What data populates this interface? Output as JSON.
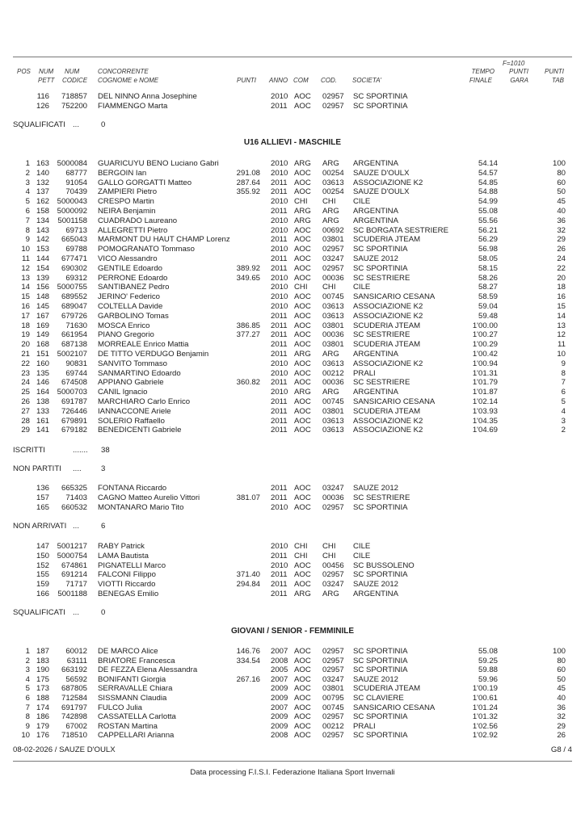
{
  "header": {
    "f_label": "F=1010",
    "cols_top": {
      "pos": "POS",
      "num1": "NUM",
      "num2": "NUM",
      "concorrente": "CONCORRENTE",
      "tempo": "TEMPO",
      "punti_gara": "PUNTI",
      "punti_tab": "PUNTI"
    },
    "cols_bottom": {
      "pett": "PETT",
      "codice": "CODICE",
      "nome": "COGNOME e NOME",
      "punti": "PUNTI",
      "anno": "ANNO",
      "com": "COM",
      "cod": "COD.",
      "societa": "SOCIETA'",
      "finale": "FINALE",
      "gara": "GARA",
      "tab": "TAB"
    }
  },
  "prev_rows": [
    [
      "",
      "116",
      "718857",
      "DEL NINNO Anna Josephine",
      "",
      "2010",
      "AOC",
      "02957",
      "SC SPORTINIA",
      "",
      ""
    ],
    [
      "",
      "126",
      "752200",
      "FIAMMENGO Marta",
      "",
      "2011",
      "AOC",
      "02957",
      "SC SPORTINIA",
      "",
      ""
    ]
  ],
  "prev_squalificati": {
    "label": "SQUALIFICATI",
    "dots": "...",
    "count": "0"
  },
  "u16": {
    "title": "U16 ALLIEVI - MASCHILE",
    "rows": [
      [
        "1",
        "163",
        "5000084",
        "GUARICUYU BENO Luciano Gabri",
        "",
        "2010",
        "ARG",
        "ARG",
        "ARGENTINA",
        "54.14",
        "100"
      ],
      [
        "2",
        "140",
        "68777",
        "BERGOIN Ian",
        "291.08",
        "2010",
        "AOC",
        "00254",
        "SAUZE D'OULX",
        "54.57",
        "80"
      ],
      [
        "3",
        "132",
        "91054",
        "GALLO GORGATTI Matteo",
        "287.64",
        "2011",
        "AOC",
        "03613",
        "ASSOCIAZIONE K2",
        "54.85",
        "60"
      ],
      [
        "4",
        "137",
        "70439",
        "ZAMPIERI Pietro",
        "355.92",
        "2011",
        "AOC",
        "00254",
        "SAUZE D'OULX",
        "54.88",
        "50"
      ],
      [
        "5",
        "162",
        "5000043",
        "CRESPO Martin",
        "",
        "2010",
        "CHI",
        "CHI",
        "CILE",
        "54.99",
        "45"
      ],
      [
        "6",
        "158",
        "5000092",
        "NEIRA Benjamin",
        "",
        "2011",
        "ARG",
        "ARG",
        "ARGENTINA",
        "55.08",
        "40"
      ],
      [
        "7",
        "134",
        "5001158",
        "CUADRADO Laureano",
        "",
        "2010",
        "ARG",
        "ARG",
        "ARGENTINA",
        "55.56",
        "36"
      ],
      [
        "8",
        "143",
        "69713",
        "ALLEGRETTI Pietro",
        "",
        "2010",
        "AOC",
        "00692",
        "SC BORGATA SESTRIERE",
        "56.21",
        "32"
      ],
      [
        "9",
        "142",
        "665043",
        "MARMONT DU HAUT CHAMP Lorenz",
        "",
        "2011",
        "AOC",
        "03801",
        "SCUDERIA JTEAM",
        "56.29",
        "29"
      ],
      [
        "10",
        "153",
        "69788",
        "POMOGRANATO Tommaso",
        "",
        "2010",
        "AOC",
        "02957",
        "SC SPORTINIA",
        "56.98",
        "26"
      ],
      [
        "11",
        "144",
        "677471",
        "VICO Alessandro",
        "",
        "2011",
        "AOC",
        "03247",
        "SAUZE 2012",
        "58.05",
        "24"
      ],
      [
        "12",
        "154",
        "690302",
        "GENTILE Edoardo",
        "389.92",
        "2011",
        "AOC",
        "02957",
        "SC SPORTINIA",
        "58.15",
        "22"
      ],
      [
        "13",
        "139",
        "69312",
        "PERRONE Edoardo",
        "349.65",
        "2010",
        "AOC",
        "00036",
        "SC SESTRIERE",
        "58.26",
        "20"
      ],
      [
        "14",
        "156",
        "5000755",
        "SANTIBANEZ Pedro",
        "",
        "2010",
        "CHI",
        "CHI",
        "CILE",
        "58.27",
        "18"
      ],
      [
        "15",
        "148",
        "689552",
        "JERINO' Federico",
        "",
        "2010",
        "AOC",
        "00745",
        "SANSICARIO CESANA",
        "58.59",
        "16"
      ],
      [
        "16",
        "145",
        "689047",
        "COLTELLA Davide",
        "",
        "2010",
        "AOC",
        "03613",
        "ASSOCIAZIONE K2",
        "59.04",
        "15"
      ],
      [
        "17",
        "167",
        "679726",
        "GARBOLINO Tomas",
        "",
        "2011",
        "AOC",
        "03613",
        "ASSOCIAZIONE K2",
        "59.48",
        "14"
      ],
      [
        "18",
        "169",
        "71630",
        "MOSCA Enrico",
        "386.85",
        "2011",
        "AOC",
        "03801",
        "SCUDERIA JTEAM",
        "1'00.00",
        "13"
      ],
      [
        "19",
        "149",
        "661954",
        "PIANO Gregorio",
        "377.27",
        "2011",
        "AOC",
        "00036",
        "SC SESTRIERE",
        "1'00.27",
        "12"
      ],
      [
        "20",
        "168",
        "687138",
        "MORREALE Enrico Mattia",
        "",
        "2011",
        "AOC",
        "03801",
        "SCUDERIA JTEAM",
        "1'00.29",
        "11"
      ],
      [
        "21",
        "151",
        "5002107",
        "DE TITTO VERDUGO Benjamin",
        "",
        "2011",
        "ARG",
        "ARG",
        "ARGENTINA",
        "1'00.42",
        "10"
      ],
      [
        "22",
        "160",
        "90831",
        "SANVITO Tommaso",
        "",
        "2010",
        "AOC",
        "03613",
        "ASSOCIAZIONE K2",
        "1'00.94",
        "9"
      ],
      [
        "23",
        "135",
        "69744",
        "SANMARTINO Edoardo",
        "",
        "2010",
        "AOC",
        "00212",
        "PRALI",
        "1'01.31",
        "8"
      ],
      [
        "24",
        "146",
        "674508",
        "APPIANO Gabriele",
        "360.82",
        "2011",
        "AOC",
        "00036",
        "SC SESTRIERE",
        "1'01.79",
        "7"
      ],
      [
        "25",
        "164",
        "5000703",
        "CANIL Ignacio",
        "",
        "2010",
        "ARG",
        "ARG",
        "ARGENTINA",
        "1'01.87",
        "6"
      ],
      [
        "26",
        "138",
        "691787",
        "MARCHIARO Carlo Enrico",
        "",
        "2011",
        "AOC",
        "00745",
        "SANSICARIO CESANA",
        "1'02.14",
        "5"
      ],
      [
        "27",
        "133",
        "726446",
        "IANNACCONE Ariele",
        "",
        "2011",
        "AOC",
        "03801",
        "SCUDERIA JTEAM",
        "1'03.93",
        "4"
      ],
      [
        "28",
        "161",
        "679891",
        "SOLERIO Raffaello",
        "",
        "2011",
        "AOC",
        "03613",
        "ASSOCIAZIONE K2",
        "1'04.35",
        "3"
      ],
      [
        "29",
        "141",
        "679182",
        "BENEDICENTI Gabriele",
        "",
        "2011",
        "AOC",
        "03613",
        "ASSOCIAZIONE K2",
        "1'04.69",
        "2"
      ]
    ],
    "iscritti": {
      "label": "ISCRITTI",
      "dots": ".......",
      "count": "38"
    },
    "non_partiti": {
      "label": "NON PARTITI",
      "dots": "....",
      "count": "3"
    },
    "non_partiti_rows": [
      [
        "",
        "136",
        "665325",
        "FONTANA Riccardo",
        "",
        "2011",
        "AOC",
        "03247",
        "SAUZE 2012",
        "",
        ""
      ],
      [
        "",
        "157",
        "71403",
        "CAGNO Matteo Aurelio    Vittori",
        "381.07",
        "2011",
        "AOC",
        "00036",
        "SC SESTRIERE",
        "",
        ""
      ],
      [
        "",
        "165",
        "660532",
        "MONTANARO Mario Tito",
        "",
        "2010",
        "AOC",
        "02957",
        "SC SPORTINIA",
        "",
        ""
      ]
    ],
    "non_arrivati": {
      "label": "NON ARRIVATI",
      "dots": "...",
      "count": "6"
    },
    "non_arrivati_rows": [
      [
        "",
        "147",
        "5001217",
        "RABY Patrick",
        "",
        "2010",
        "CHI",
        "CHI",
        "CILE",
        "",
        ""
      ],
      [
        "",
        "150",
        "5000754",
        "LAMA Bautista",
        "",
        "2011",
        "CHI",
        "CHI",
        "CILE",
        "",
        ""
      ],
      [
        "",
        "152",
        "674861",
        "PIGNATELLI Marco",
        "",
        "2010",
        "AOC",
        "00456",
        "SC BUSSOLENO",
        "",
        ""
      ],
      [
        "",
        "155",
        "691214",
        "FALCONI Filippo",
        "371.40",
        "2011",
        "AOC",
        "02957",
        "SC SPORTINIA",
        "",
        ""
      ],
      [
        "",
        "159",
        "71717",
        "VIOTTI Riccardo",
        "294.84",
        "2011",
        "AOC",
        "03247",
        "SAUZE 2012",
        "",
        ""
      ],
      [
        "",
        "166",
        "5001188",
        "BENEGAS Emilio",
        "",
        "2011",
        "ARG",
        "ARG",
        "ARGENTINA",
        "",
        ""
      ]
    ],
    "squalificati": {
      "label": "SQUALIFICATI",
      "dots": "...",
      "count": "0"
    }
  },
  "giovani": {
    "title": "GIOVANI / SENIOR - FEMMINILE",
    "rows": [
      [
        "1",
        "187",
        "60012",
        "DE MARCO Alice",
        "146.76",
        "2007",
        "AOC",
        "02957",
        "SC SPORTINIA",
        "55.08",
        "100"
      ],
      [
        "2",
        "183",
        "63111",
        "BRIATORE Francesca",
        "334.54",
        "2008",
        "AOC",
        "02957",
        "SC SPORTINIA",
        "59.25",
        "80"
      ],
      [
        "3",
        "190",
        "663192",
        "DE FEZZA Elena  Alessandra",
        "",
        "2005",
        "AOC",
        "02957",
        "SC SPORTINIA",
        "59.88",
        "60"
      ],
      [
        "4",
        "175",
        "56592",
        "BONIFANTI Giorgia",
        "267.16",
        "2007",
        "AOC",
        "03247",
        "SAUZE 2012",
        "59.96",
        "50"
      ],
      [
        "5",
        "173",
        "687805",
        "SERRAVALLE Chiara",
        "",
        "2009",
        "AOC",
        "03801",
        "SCUDERIA JTEAM",
        "1'00.19",
        "45"
      ],
      [
        "6",
        "188",
        "712584",
        "SISSMANN Claudia",
        "",
        "2009",
        "AOC",
        "00795",
        "SC CLAVIERE",
        "1'00.61",
        "40"
      ],
      [
        "7",
        "174",
        "691797",
        "FULCO Julia",
        "",
        "2007",
        "AOC",
        "00745",
        "SANSICARIO CESANA",
        "1'01.24",
        "36"
      ],
      [
        "8",
        "186",
        "742898",
        "CASSATELLA Carlotta",
        "",
        "2009",
        "AOC",
        "02957",
        "SC SPORTINIA",
        "1'01.32",
        "32"
      ],
      [
        "9",
        "179",
        "67002",
        "ROSTAN Martina",
        "",
        "2009",
        "AOC",
        "00212",
        "PRALI",
        "1'02.56",
        "29"
      ],
      [
        "10",
        "176",
        "718510",
        "CAPPELLARI Arianna",
        "",
        "2008",
        "AOC",
        "02957",
        "SC SPORTINIA",
        "1'02.92",
        "26"
      ]
    ]
  },
  "footer": {
    "date_place": "08-02-2026 / SAUZE D'OULX",
    "page": "G8 / 4",
    "credit": "Data processing F.I.S.I. Federazione Italiana Sport Invernali"
  }
}
